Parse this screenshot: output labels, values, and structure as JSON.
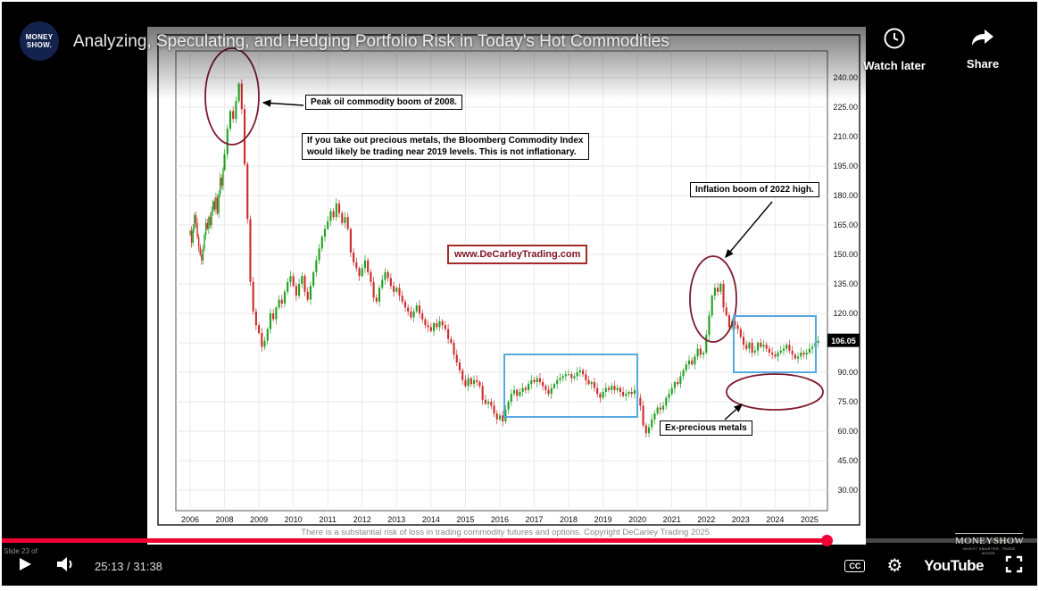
{
  "player": {
    "title": "Analyzing, Speculating, and Hedging Portfolio Risk in Today’s Hot Commodities",
    "badge_line1": "MONEY",
    "badge_line2": "SHOW.",
    "watch_later_label": "Watch later",
    "share_label": "Share",
    "time_text": "25:13 / 31:38",
    "progress_percent": 79.7,
    "accent_color": "#f00033",
    "cc_label": "CC",
    "youtube_label": "YouTube",
    "slide_counter": "Slide 23 of"
  },
  "slide": {
    "disclaimer": "There is a substantial risk of loss in trading commodity futures and options. Copyright DeCarley Trading 2025.",
    "watermark_title": "MONEYSHOW",
    "watermark_tagline": "INVEST SMARTER. TRADE WISER."
  },
  "chart_data": {
    "type": "candlestick",
    "series_name": "Bloomberg Commodity Index",
    "x_tick_labels": [
      "2006",
      "2008",
      "2009",
      "2010",
      "2011",
      "2012",
      "2013",
      "2014",
      "2015",
      "2016",
      "2017",
      "2018",
      "2019",
      "2020",
      "2021",
      "2022",
      "2023",
      "2024",
      "2025"
    ],
    "y_tick_labels": [
      "240.00",
      "225.00",
      "210.00",
      "195.00",
      "180.00",
      "165.00",
      "150.00",
      "135.00",
      "120.00",
      "105.00",
      "90.00",
      "75.00",
      "60.00",
      "45.00",
      "30.00"
    ],
    "ylim": [
      20,
      253
    ],
    "last_price_label": "106.05",
    "colors": {
      "up": "#1fa01f",
      "down": "#cc2b2b",
      "annotation_red": "#7d1c2e",
      "highlight_blue": "#58a8e0"
    },
    "annotations": {
      "peak_oil": "Peak oil commodity boom of 2008.",
      "note_line1": "If you take out precious metals, the Bloomberg Commodity Index",
      "note_line2": "would likely be trading near 2019 levels. This is not inflationary.",
      "website": "www.DeCarleyTrading.com",
      "inflation_2022": "Inflation boom of 2022 high.",
      "ex_precious": "Ex-precious metals"
    },
    "monthly_closes": {
      "2006": [
        162,
        156,
        163,
        170,
        166,
        159,
        154,
        150,
        147,
        153,
        160,
        166
      ],
      "2007": [
        163,
        169,
        165,
        172,
        177,
        173,
        179,
        171,
        181,
        189,
        185,
        193
      ],
      "2008": [
        201,
        214,
        223,
        219,
        228,
        237,
        224,
        196,
        168,
        136,
        121,
        114
      ],
      "2009": [
        110,
        103,
        106,
        112,
        120,
        117,
        123,
        127,
        125,
        131,
        136,
        139
      ],
      "2010": [
        134,
        129,
        135,
        139,
        131,
        127,
        134,
        141,
        147,
        153,
        159,
        163
      ],
      "2011": [
        167,
        172,
        169,
        176,
        171,
        166,
        169,
        163,
        151,
        146,
        143,
        139
      ],
      "2012": [
        143,
        147,
        141,
        136,
        128,
        126,
        133,
        137,
        141,
        138,
        134,
        131
      ],
      "2013": [
        133,
        129,
        126,
        123,
        121,
        118,
        121,
        124,
        120,
        117,
        114,
        113
      ],
      "2014": [
        111,
        115,
        113,
        116,
        114,
        112,
        107,
        105,
        99,
        95,
        91,
        86
      ],
      "2015": [
        83,
        87,
        84,
        86,
        85,
        83,
        76,
        74,
        75,
        73,
        69,
        66
      ],
      "2016": [
        68,
        65,
        71,
        75,
        79,
        81,
        78,
        80,
        82,
        81,
        84,
        86
      ],
      "2017": [
        85,
        87,
        85,
        83,
        81,
        79,
        82,
        84,
        86,
        87,
        88,
        89
      ],
      "2018": [
        89,
        87,
        88,
        90,
        91,
        89,
        86,
        84,
        85,
        82,
        79,
        77
      ],
      "2019": [
        80,
        82,
        81,
        83,
        81,
        82,
        80,
        78,
        79,
        80,
        79,
        81
      ],
      "2020": [
        77,
        73,
        63,
        59,
        62,
        66,
        69,
        72,
        71,
        73,
        77,
        79
      ],
      "2021": [
        82,
        85,
        84,
        88,
        91,
        94,
        96,
        94,
        98,
        102,
        99,
        100
      ],
      "2022": [
        109,
        119,
        129,
        133,
        131,
        135,
        123,
        119,
        113,
        116,
        114,
        112
      ],
      "2023": [
        108,
        104,
        102,
        105,
        100,
        101,
        105,
        103,
        104,
        102,
        100,
        99
      ],
      "2024": [
        98,
        100,
        101,
        102,
        104,
        101,
        99,
        97,
        98,
        100,
        99,
        100
      ],
      "2025": [
        102,
        103,
        105,
        106.05
      ]
    }
  }
}
